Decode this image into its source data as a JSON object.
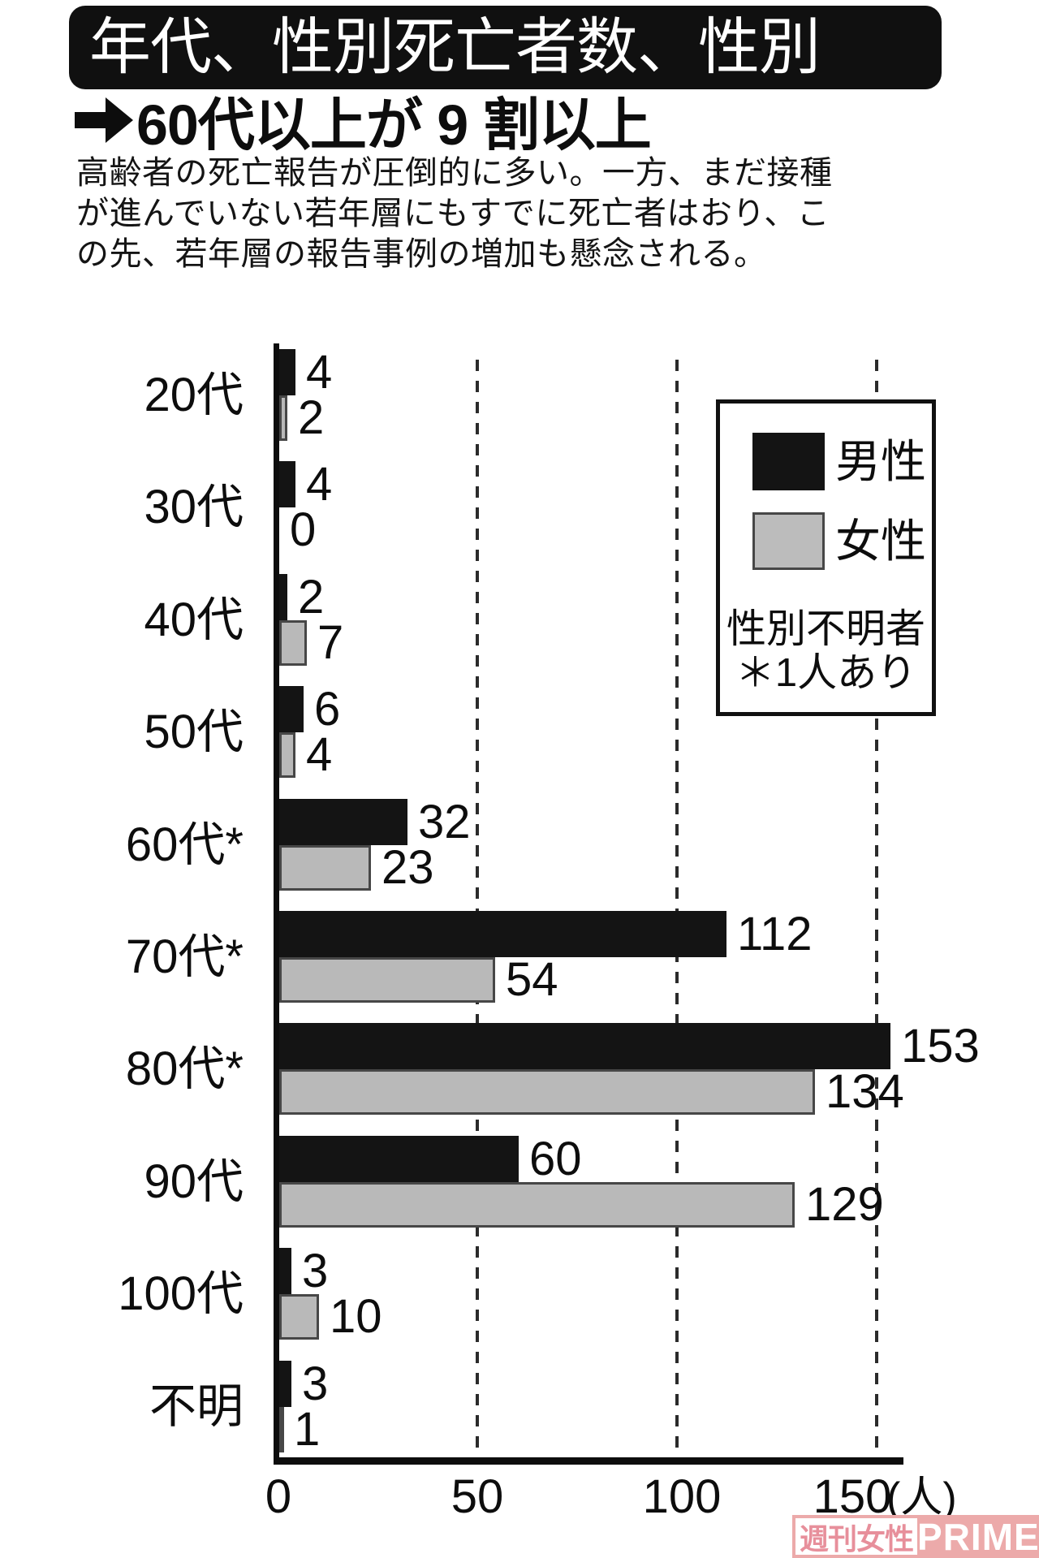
{
  "title": "年代、性別死亡者数、性別",
  "subtitle": "60代以上が 9 割以上",
  "description_lines": [
    "高齢者の死亡報告が圧倒的に多い。一方、まだ接種",
    "が進んでいない若年層にもすでに死亡者はおり、こ",
    "の先、若年層の報告事例の増加も懸念される。"
  ],
  "legend": {
    "male_label": "男性",
    "female_label": "女性",
    "note_line1": "性別不明者",
    "note_line2": "＊1人あり"
  },
  "chart_data": {
    "type": "bar",
    "orientation": "horizontal",
    "categories": [
      "20代",
      "30代",
      "40代",
      "50代",
      "60代*",
      "70代*",
      "80代*",
      "90代",
      "100代",
      "不明"
    ],
    "series": [
      {
        "name": "男性",
        "color": "#141414",
        "values": [
          4,
          4,
          2,
          6,
          32,
          112,
          153,
          60,
          3,
          3
        ]
      },
      {
        "name": "女性",
        "color": "#b9b9b9",
        "values": [
          2,
          0,
          7,
          4,
          23,
          54,
          134,
          129,
          10,
          1
        ]
      }
    ],
    "x_ticks": [
      "0",
      "50",
      "100",
      "150"
    ],
    "unit_label": "(人)",
    "xlim": [
      0,
      156
    ],
    "grid": "dashed-vertical",
    "legend_position": "top-right"
  },
  "colors": {
    "male_bar": "#141414",
    "female_bar": "#b9b9b9",
    "female_bar_border": "#474747",
    "title_bar_bg": "#101010",
    "title_text": "#ffffff",
    "axis": "#0d0d0d",
    "gridline": "#2b2b2b",
    "watermark_pink": "#ecaaaa",
    "watermark_text_pink": "#e78f9b"
  },
  "watermark": {
    "part1": "週刊女性",
    "part2": "PRIME"
  }
}
